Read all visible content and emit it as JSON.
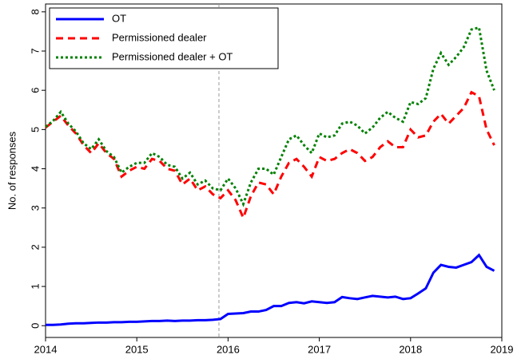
{
  "chart_data": {
    "type": "line",
    "y_label": "No. of responses",
    "xlim": [
      2014,
      2019
    ],
    "xticks": [
      2014,
      2015,
      2016,
      2017,
      2018,
      2019
    ],
    "ylim": [
      -0.3,
      8.2
    ],
    "yticks": [
      0,
      1,
      2,
      3,
      4,
      5,
      6,
      7,
      8
    ],
    "vline": 2015.9,
    "legend": "top-left",
    "x": [
      2014,
      2014.083,
      2014.167,
      2014.25,
      2014.333,
      2014.417,
      2014.5,
      2014.583,
      2014.667,
      2014.75,
      2014.833,
      2014.917,
      2015,
      2015.083,
      2015.167,
      2015.25,
      2015.333,
      2015.417,
      2015.5,
      2015.583,
      2015.667,
      2015.75,
      2015.833,
      2015.917,
      2016,
      2016.083,
      2016.167,
      2016.25,
      2016.333,
      2016.417,
      2016.5,
      2016.583,
      2016.667,
      2016.75,
      2016.833,
      2016.917,
      2017,
      2017.083,
      2017.167,
      2017.25,
      2017.333,
      2017.417,
      2017.5,
      2017.583,
      2017.667,
      2017.75,
      2017.833,
      2017.917,
      2018,
      2018.083,
      2018.167,
      2018.25,
      2018.333,
      2018.417,
      2018.5,
      2018.583,
      2018.667,
      2018.75,
      2018.833,
      2018.917
    ],
    "series": [
      {
        "name": "OT",
        "color": "#0000ff",
        "style": "solid",
        "values": [
          0.02,
          0.02,
          0.03,
          0.05,
          0.06,
          0.06,
          0.07,
          0.08,
          0.08,
          0.09,
          0.09,
          0.1,
          0.1,
          0.11,
          0.12,
          0.12,
          0.13,
          0.12,
          0.13,
          0.13,
          0.14,
          0.14,
          0.15,
          0.17,
          0.3,
          0.31,
          0.32,
          0.36,
          0.36,
          0.4,
          0.5,
          0.5,
          0.58,
          0.6,
          0.57,
          0.62,
          0.6,
          0.58,
          0.6,
          0.73,
          0.7,
          0.68,
          0.72,
          0.76,
          0.74,
          0.72,
          0.74,
          0.68,
          0.7,
          0.82,
          0.95,
          1.35,
          1.55,
          1.5,
          1.48,
          1.55,
          1.62,
          1.8,
          1.5,
          1.4
        ]
      },
      {
        "name": "Permissioned dealer",
        "color": "#ff0000",
        "style": "dashed",
        "values": [
          5.05,
          5.2,
          5.35,
          5.1,
          4.9,
          4.6,
          4.4,
          4.65,
          4.4,
          4.25,
          3.8,
          3.95,
          4.05,
          4.0,
          4.25,
          4.2,
          4.0,
          3.95,
          3.6,
          3.75,
          3.45,
          3.55,
          3.35,
          3.25,
          3.45,
          3.2,
          2.75,
          3.3,
          3.65,
          3.6,
          3.35,
          3.8,
          4.15,
          4.25,
          4.05,
          3.8,
          4.3,
          4.2,
          4.25,
          4.4,
          4.5,
          4.4,
          4.2,
          4.3,
          4.55,
          4.7,
          4.55,
          4.55,
          5.0,
          4.8,
          4.85,
          5.2,
          5.4,
          5.15,
          5.35,
          5.55,
          5.95,
          5.85,
          5.0,
          4.6
        ]
      },
      {
        "name": "Permissioned dealer + OT",
        "color": "#008000",
        "style": "dotted",
        "values": [
          5.07,
          5.22,
          5.45,
          5.15,
          4.95,
          4.65,
          4.5,
          4.75,
          4.45,
          4.3,
          3.9,
          4.05,
          4.15,
          4.15,
          4.4,
          4.3,
          4.1,
          4.05,
          3.75,
          3.9,
          3.6,
          3.7,
          3.5,
          3.45,
          3.75,
          3.5,
          3.1,
          3.65,
          4.0,
          4.0,
          3.85,
          4.3,
          4.75,
          4.85,
          4.6,
          4.4,
          4.9,
          4.8,
          4.85,
          5.15,
          5.2,
          5.1,
          4.9,
          5.05,
          5.3,
          5.45,
          5.3,
          5.2,
          5.7,
          5.65,
          5.8,
          6.55,
          6.95,
          6.65,
          6.85,
          7.1,
          7.55,
          7.6,
          6.5,
          6.0
        ]
      }
    ]
  }
}
